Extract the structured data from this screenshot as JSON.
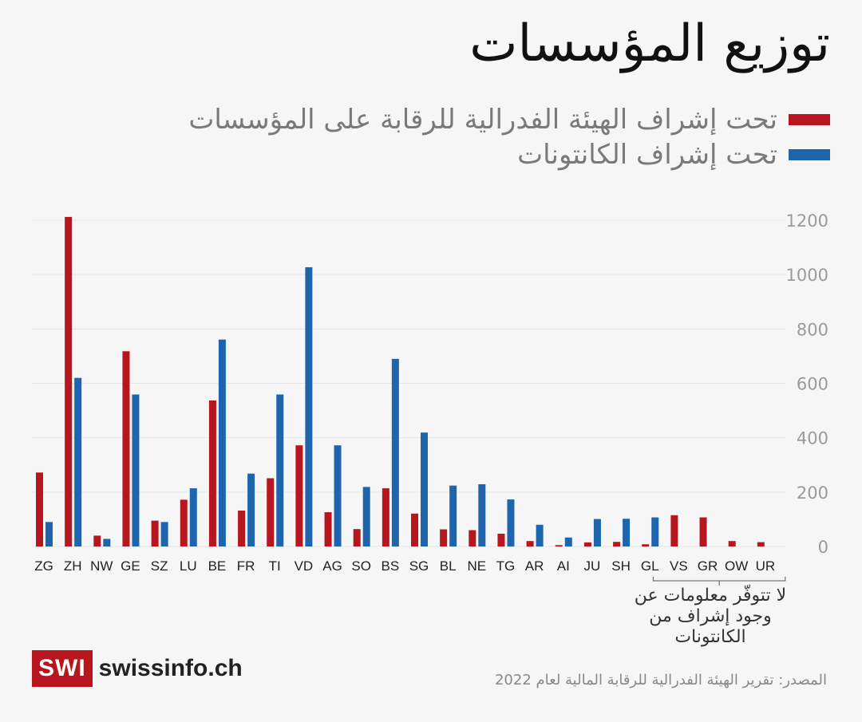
{
  "title": "توزيع المؤسسات",
  "legend": {
    "finma_label": "تحت إشراف الهيئة الفدرالية للرقابة على المؤسسات",
    "cantons_label": "تحت إشراف الكانتونات"
  },
  "colors": {
    "finma": "#b7161e",
    "cantons": "#1f65ad",
    "grid": "#e6e6e6",
    "tick": "#9a9a9a"
  },
  "chart_data": {
    "type": "bar",
    "categories": [
      "ZG",
      "ZH",
      "NW",
      "GE",
      "SZ",
      "LU",
      "BE",
      "FR",
      "TI",
      "VD",
      "AG",
      "SO",
      "BS",
      "SG",
      "BL",
      "NE",
      "TG",
      "AR",
      "AI",
      "JU",
      "SH",
      "GL",
      "VS",
      "GR",
      "OW",
      "UR"
    ],
    "series": [
      {
        "name": "تحت إشراف الهيئة الفدرالية للرقابة على المؤسسات",
        "values": [
          272,
          1212,
          40,
          718,
          95,
          172,
          537,
          132,
          251,
          372,
          126,
          64,
          214,
          121,
          63,
          60,
          47,
          20,
          5,
          15,
          17,
          8,
          115,
          107,
          20,
          16
        ]
      },
      {
        "name": "تحت إشراف الكانتونات",
        "values": [
          90,
          620,
          28,
          559,
          90,
          214,
          761,
          268,
          559,
          1027,
          372,
          219,
          690,
          419,
          224,
          229,
          173,
          80,
          33,
          101,
          102,
          107,
          0,
          0,
          0,
          0
        ]
      }
    ],
    "yticks": [
      0,
      200,
      400,
      600,
      800,
      1000,
      1200
    ],
    "ylim": [
      0,
      1230
    ],
    "y_axis_side": "right",
    "grid": true,
    "legend_position": "top-right"
  },
  "annotation": {
    "text": "لا تتوفّر معلومات عن وجود إشراف من الكانتونات",
    "categories": [
      "VS",
      "GR",
      "OW",
      "UR"
    ]
  },
  "logo": {
    "box_text": "SWI",
    "text": "swissinfo.ch"
  },
  "source": "المصدر: تقرير الهيئة الفدرالية للرقابة المالية لعام 2022"
}
